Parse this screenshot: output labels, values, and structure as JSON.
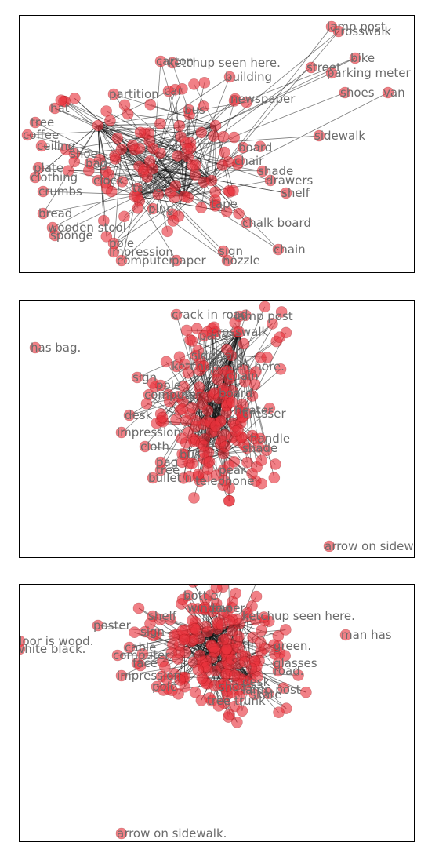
{
  "panels": [
    {
      "labels": [
        "lamp post",
        "crosswalk",
        "ketchup seen here.",
        "carton",
        "building",
        "street",
        "bike",
        "parking meter",
        "shoes",
        "van",
        "partition",
        "newspaper",
        "sidewalk",
        "board",
        "hat",
        "plate",
        "clothing",
        "crumbs",
        "bread",
        "wooden stool",
        "sponge",
        "plug",
        "tape",
        "impression",
        "computer",
        "paper",
        "nozzle",
        "chain",
        "shelf",
        "drawers",
        "chalk board",
        "shade",
        "tree",
        "coffee",
        "ceiling",
        "shoe",
        "bag",
        "clock",
        "bus",
        "car",
        "sign",
        "pole",
        "table",
        "chair"
      ]
    },
    {
      "labels": [
        "has bag.",
        "arrow on sidewalk.",
        "crack in road.",
        "lamp post",
        "crosswalk",
        "sidewalk",
        "paper",
        "ketchup seen here.",
        "computer",
        "chain",
        "desk",
        "heater",
        "dresser",
        "impression",
        "cloth",
        "bag",
        "bus",
        "tree",
        "bulletin",
        "telephone",
        "pear",
        "shade",
        "sign",
        "pole",
        "board",
        "handle"
      ]
    },
    {
      "labels": [
        "man has",
        "arrow on sidewalk.",
        "floor is wood.",
        "white black.",
        "bottle",
        "poster",
        "ketchup seen here.",
        "green.",
        "glasses",
        "road.",
        "lamp post",
        "tree trunk",
        "impression",
        "computer",
        "cable",
        "face",
        "shelf",
        "sign",
        "pole",
        "desk",
        "skate",
        "shoes",
        "window",
        "paper"
      ]
    }
  ]
}
